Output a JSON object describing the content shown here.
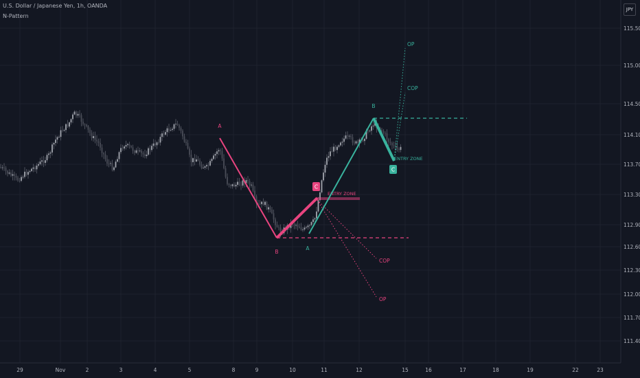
{
  "header": {
    "symbol_line": "U.S. Dollar / Japanese Yen, 1h, OANDA",
    "study_name": "N-Pattern",
    "currency_badge": "JPY"
  },
  "chart_data": {
    "type": "candlestick",
    "y_ticks": [
      "115.500",
      "115.000",
      "114.500",
      "114.100",
      "113.700",
      "113.300",
      "112.900",
      "112.600",
      "112.300",
      "112.000",
      "111.700",
      "111.400"
    ],
    "x_ticks": [
      "29",
      "Nov",
      "2",
      "3",
      "4",
      "5",
      "8",
      "9",
      "10",
      "11",
      "12",
      "15",
      "16",
      "17",
      "18",
      "19",
      "22",
      "23"
    ],
    "grid": true,
    "colors": {
      "background": "#131722",
      "candles": "#5d606b",
      "bearish_pattern": "#e8447f",
      "bullish_pattern": "#39b39e",
      "grid": "#1e222d"
    },
    "patterns": [
      {
        "name": "bearish",
        "points": [
          {
            "label": "A",
            "price": 114.02
          },
          {
            "label": "B",
            "price": 112.73
          },
          {
            "label": "C",
            "price": 113.22
          }
        ],
        "labels": [
          "A",
          "B",
          "C",
          "ENTRY ZONE",
          "COP",
          "OP"
        ],
        "level_price": 112.73
      },
      {
        "name": "bullish",
        "points": [
          {
            "label": "A",
            "price": 112.85
          },
          {
            "label": "B",
            "price": 114.3
          },
          {
            "label": "C",
            "price": 113.75
          }
        ],
        "labels": [
          "A",
          "B",
          "C",
          "ENTRY ZONE",
          "COP",
          "OP"
        ],
        "level_price": 114.3
      }
    ]
  }
}
